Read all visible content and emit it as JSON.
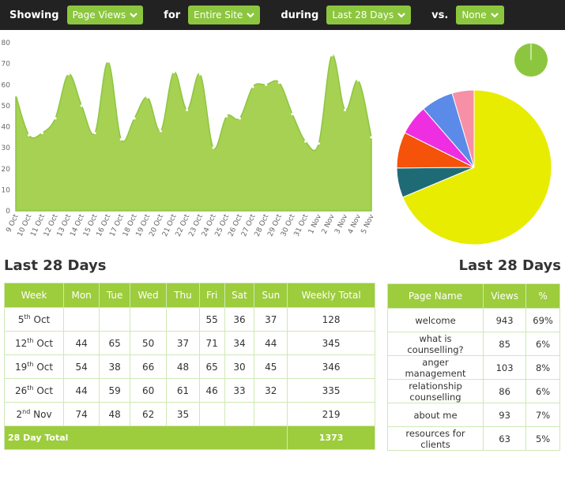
{
  "top_bar": {
    "showing_label": "Showing",
    "metric": "Page Views",
    "for_label": "for",
    "scope": "Entire Site",
    "during_label": "during",
    "period": "Last 28 Days",
    "vs_label": "vs.",
    "comparison": "None"
  },
  "chart_data": [
    {
      "type": "area",
      "x": [
        "9 Oct",
        "10 Oct",
        "11 Oct",
        "12 Oct",
        "13 Oct",
        "14 Oct",
        "15 Oct",
        "16 Oct",
        "17 Oct",
        "18 Oct",
        "19 Oct",
        "20 Oct",
        "21 Oct",
        "22 Oct",
        "23 Oct",
        "24 Oct",
        "25 Oct",
        "26 Oct",
        "27 Oct",
        "28 Oct",
        "29 Oct",
        "30 Oct",
        "31 Oct",
        "1 Nov",
        "2 Nov",
        "3 Nov",
        "4 Nov",
        "5 Nov"
      ],
      "values": [
        55,
        36,
        37,
        44,
        65,
        50,
        37,
        71,
        34,
        44,
        54,
        38,
        66,
        48,
        65,
        30,
        45,
        44,
        59,
        60,
        61,
        46,
        33,
        32,
        74,
        48,
        62,
        35
      ],
      "color": "#a6d153",
      "ylim": [
        0,
        80
      ],
      "yticks": [
        0,
        10,
        20,
        30,
        40,
        50,
        60,
        70,
        80
      ]
    },
    {
      "type": "pie",
      "categories": [
        "welcome",
        "what is counselling?",
        "anger management",
        "relationship counselling",
        "about me",
        "resources for clients"
      ],
      "values": [
        943,
        85,
        103,
        86,
        93,
        63
      ],
      "colors": [
        "#e8ec00",
        "#1f6b75",
        "#f5520a",
        "#ee2ee0",
        "#5b8ae8",
        "#f78fa7"
      ]
    }
  ],
  "weekly_table": {
    "title": "Last 28 Days",
    "header": [
      "Week",
      "Mon",
      "Tue",
      "Wed",
      "Thu",
      "Fri",
      "Sat",
      "Sun",
      "Weekly Total"
    ],
    "rows": [
      {
        "week": {
          "day": "5",
          "suffix": "th",
          "month": "Oct"
        },
        "days": [
          null,
          null,
          null,
          null,
          55,
          36,
          37
        ],
        "total": 128
      },
      {
        "week": {
          "day": "12",
          "suffix": "th",
          "month": "Oct"
        },
        "days": [
          44,
          65,
          50,
          37,
          71,
          34,
          44
        ],
        "total": 345
      },
      {
        "week": {
          "day": "19",
          "suffix": "th",
          "month": "Oct"
        },
        "days": [
          54,
          38,
          66,
          48,
          65,
          30,
          45
        ],
        "total": 346
      },
      {
        "week": {
          "day": "26",
          "suffix": "th",
          "month": "Oct"
        },
        "days": [
          44,
          59,
          60,
          61,
          46,
          33,
          32
        ],
        "total": 335
      },
      {
        "week": {
          "day": "2",
          "suffix": "nd",
          "month": "Nov"
        },
        "days": [
          74,
          48,
          62,
          35,
          null,
          null,
          null
        ],
        "total": 219
      }
    ],
    "footer": {
      "label": "28 Day Total",
      "total": 1373
    }
  },
  "page_table": {
    "title": "Last 28 Days",
    "header": [
      "Page Name",
      "Views",
      "%"
    ],
    "rows": [
      [
        "welcome",
        943,
        "69%"
      ],
      [
        "what is counselling?",
        85,
        "6%"
      ],
      [
        "anger management",
        103,
        "8%"
      ],
      [
        "relationship counselling",
        86,
        "6%"
      ],
      [
        "about me",
        93,
        "7%"
      ],
      [
        "resources for clients",
        63,
        "5%"
      ]
    ]
  }
}
